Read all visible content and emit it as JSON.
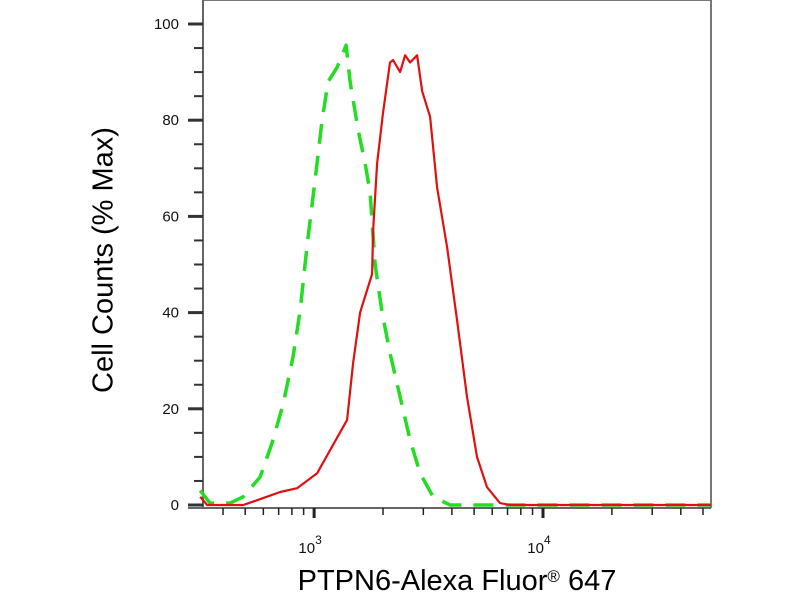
{
  "chart_data": {
    "type": "line",
    "title": "",
    "xlabel": "PTPN6-Alexa Fluor",
    "xlabel_sup": "®",
    "xlabel_suffix": " 647",
    "ylabel": "Cell Counts (% Max)",
    "xscale": "log",
    "xlim": [
      327,
      54200
    ],
    "ylim": [
      0,
      100
    ],
    "grid": false,
    "legend": "none",
    "x_ticks": [
      {
        "value": 1000,
        "base": "10",
        "exp": "3"
      },
      {
        "value": 10000,
        "base": "10",
        "exp": "4"
      }
    ],
    "y_ticks": [
      0,
      20,
      40,
      60,
      80,
      100
    ],
    "series": [
      {
        "color": "#22dd22",
        "style": "dashed",
        "x": [
          318,
          351,
          429,
          490,
          581,
          656,
          733,
          810,
          869,
          932,
          1010,
          1084,
          1151,
          1260,
          1380,
          1436,
          1556,
          1671,
          1757,
          1847,
          1982,
          2146,
          2375,
          2626,
          2904,
          3311,
          3926,
          5149,
          7173,
          54200
        ],
        "y": [
          3,
          0.4,
          0.4,
          1.7,
          5.8,
          13,
          21,
          31,
          40.5,
          54,
          67.6,
          80,
          88,
          91,
          95.6,
          88,
          78,
          71,
          65,
          50,
          40,
          31.6,
          22.5,
          13.5,
          6.6,
          1.7,
          0,
          0,
          0,
          0
        ]
      },
      {
        "color": "#e01010",
        "style": "solid",
        "x": [
          318,
          341,
          490,
          564,
          711,
          843,
          1030,
          1260,
          1394,
          1480,
          1589,
          1704,
          1792,
          1810,
          1884,
          2000,
          2146,
          2213,
          2375,
          2497,
          2626,
          2817,
          2965,
          3211,
          3445,
          3811,
          4208,
          4654,
          5149,
          5693,
          6486,
          7173,
          54200
        ],
        "y": [
          1.7,
          0,
          0,
          1,
          2.7,
          3.5,
          6.6,
          14,
          17.7,
          29.5,
          40,
          44.7,
          48,
          57,
          71,
          81.5,
          92,
          92.5,
          90,
          93.5,
          92,
          93.5,
          86,
          80.7,
          66,
          53.6,
          38.5,
          22.5,
          10,
          3.7,
          0.4,
          0,
          0
        ]
      }
    ]
  }
}
